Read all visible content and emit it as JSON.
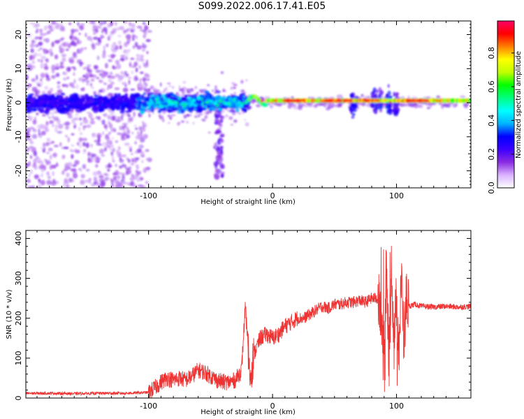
{
  "title": "S099.2022.006.17.41.E05",
  "chart_data": [
    {
      "type": "heatmap",
      "xlabel": "Height of straight line (km)",
      "ylabel": "Frequency (Hz)",
      "xlim": [
        -199,
        160
      ],
      "ylim": [
        -25,
        24
      ],
      "xticks": [
        -100,
        0,
        100
      ],
      "yticks": [
        -20,
        -10,
        0,
        10,
        20
      ],
      "colorbar": {
        "label": "Normalized spectral amplitude",
        "range": [
          0,
          1
        ],
        "ticks": [
          "0.0",
          "0.2",
          "0.4",
          "0.6",
          "0.8"
        ],
        "colors": [
          "#ffffff",
          "#d9b3ff",
          "#8a2be2",
          "#3c00ff",
          "#0000ff",
          "#00b3ff",
          "#00ffff",
          "#00ff80",
          "#00ff00",
          "#c0ff00",
          "#ffff00",
          "#ff8000",
          "#ff0000",
          "#ff0066"
        ]
      },
      "description_series": [
        {
          "segment": "scattered noise",
          "x": [
            -199,
            -100
          ],
          "frequency_spread_hz": [
            -25,
            24
          ],
          "amplitude": 0.1
        },
        {
          "segment": "broadband band",
          "x": [
            -200,
            -20
          ],
          "frequency_spread_hz": [
            -5,
            5
          ],
          "amplitude": 0.25
        },
        {
          "segment": "vertical streak",
          "x": [
            -45,
            -40
          ],
          "frequency_spread_hz": [
            -20,
            0
          ],
          "amplitude": 0.1
        },
        {
          "segment": "narrowband line",
          "x": [
            -20,
            160
          ],
          "center_frequency_hz": 1,
          "amplitude": 0.7
        },
        {
          "segment": "strong band",
          "x": [
            -10,
            160
          ],
          "center_frequency_hz": 0.5,
          "amplitude": 0.9
        }
      ]
    },
    {
      "type": "line",
      "xlabel": "Height of straight line (km)",
      "ylabel": "SNR (10 * v/v)",
      "xlim": [
        -199,
        160
      ],
      "ylim": [
        0,
        420
      ],
      "xticks": [
        -100,
        0,
        100
      ],
      "yticks": [
        0,
        100,
        200,
        300,
        400
      ],
      "series": [
        {
          "color": "#ee3333",
          "x": [
            -199,
            -180,
            -160,
            -140,
            -120,
            -100,
            -95,
            -90,
            -85,
            -80,
            -75,
            -70,
            -65,
            -60,
            -55,
            -50,
            -45,
            -40,
            -35,
            -30,
            -25,
            -22,
            -20,
            -18,
            -15,
            -10,
            -5,
            0,
            5,
            10,
            15,
            20,
            25,
            30,
            35,
            40,
            45,
            50,
            55,
            60,
            65,
            70,
            75,
            80,
            85,
            90,
            92,
            94,
            96,
            98,
            100,
            102,
            104,
            106,
            108,
            110,
            115,
            120,
            130,
            140,
            150,
            160
          ],
          "y": [
            12,
            12,
            11,
            12,
            12,
            14,
            25,
            40,
            50,
            45,
            50,
            45,
            55,
            70,
            65,
            55,
            45,
            40,
            40,
            45,
            70,
            230,
            140,
            60,
            110,
            150,
            160,
            150,
            160,
            180,
            190,
            200,
            200,
            210,
            220,
            230,
            225,
            235,
            235,
            240,
            240,
            245,
            240,
            250,
            250,
            150,
            300,
            100,
            340,
            140,
            250,
            120,
            300,
            150,
            250,
            230,
            235,
            230,
            228,
            230,
            228,
            230
          ]
        }
      ]
    }
  ]
}
